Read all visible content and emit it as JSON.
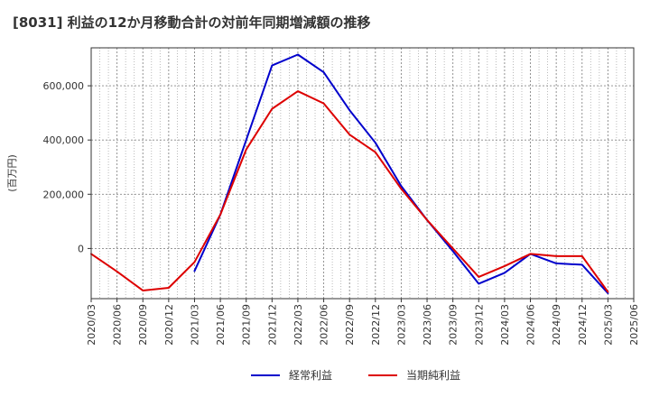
{
  "chart_data": {
    "type": "line",
    "title": "[8031]  利益の12か月移動合計の対前年同期増減額の推移",
    "ylabel": "(百万円)",
    "xlabel": "",
    "x": [
      "2020/03",
      "2020/06",
      "2020/09",
      "2020/12",
      "2021/03",
      "2021/06",
      "2021/09",
      "2021/12",
      "2022/03",
      "2022/06",
      "2022/09",
      "2022/12",
      "2023/03",
      "2023/06",
      "2023/09",
      "2023/12",
      "2024/03",
      "2024/06",
      "2024/09",
      "2024/12",
      "2025/03",
      "2025/06"
    ],
    "ylim": [
      -185000,
      740000
    ],
    "yticks": [
      0,
      200000,
      400000,
      600000
    ],
    "ytick_labels": [
      "0",
      "200,000",
      "400,000",
      "600,000"
    ],
    "grid": true,
    "legend": "bottom",
    "series": [
      {
        "name": "経常利益",
        "color": "#0000cc",
        "values": [
          null,
          null,
          null,
          null,
          -83000,
          125000,
          400000,
          675000,
          715000,
          650000,
          510000,
          390000,
          230000,
          105000,
          -10000,
          -130000,
          -90000,
          -20000,
          -55000,
          -60000,
          -165000,
          null
        ]
      },
      {
        "name": "当期純利益",
        "color": "#dd0000",
        "values": [
          -20000,
          -85000,
          -155000,
          -145000,
          -50000,
          125000,
          365000,
          515000,
          580000,
          535000,
          420000,
          355000,
          220000,
          105000,
          0,
          -105000,
          -65000,
          -20000,
          -28000,
          -28000,
          -160000,
          null
        ]
      }
    ]
  }
}
